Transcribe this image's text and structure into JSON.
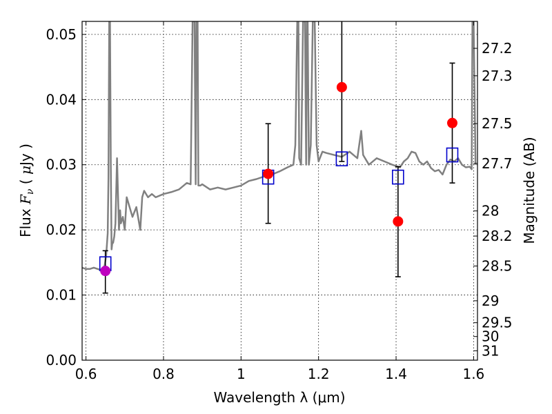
{
  "chart_data": {
    "type": "scatter",
    "title": "",
    "xlabel": "Wavelength  λ (μm)",
    "ylabel": "Flux  F_ν ( μJy )",
    "ylabel_right": "Magnitude (AB)",
    "xlim": [
      0.59,
      1.61
    ],
    "ylim": [
      0.0,
      0.052
    ],
    "grid": true,
    "x_ticks": [
      0.6,
      0.8,
      1.0,
      1.2,
      1.4,
      1.6
    ],
    "x_tick_labels": [
      "0.6",
      "0.8",
      "1",
      "1.2",
      "1.4",
      "1.6"
    ],
    "y_ticks": [
      0.0,
      0.01,
      0.02,
      0.03,
      0.04,
      0.05
    ],
    "y_tick_labels": [
      "0.00",
      "0.01",
      "0.02",
      "0.03",
      "0.04",
      "0.05"
    ],
    "mag_ticks": [
      27.2,
      27.3,
      27.5,
      27.7,
      28,
      28.2,
      28.5,
      29,
      29.5,
      30,
      31
    ],
    "mag_tick_labels": [
      "27.2",
      "27.3",
      "27.5",
      "27.7",
      "28",
      "28.2",
      "28.5",
      "29",
      "29.5",
      "30",
      "31"
    ],
    "colors": {
      "observed": "#ff0000",
      "observed_first": "#bf00bf",
      "model_box": "#0000cc",
      "errorbar": "#000000",
      "sed": "#808080"
    },
    "observed_points": [
      {
        "x": 0.65,
        "y": 0.0137,
        "err_low": 0.0103,
        "err_high": 0.0168
      },
      {
        "x": 1.07,
        "y": 0.0286,
        "err_low": 0.021,
        "err_high": 0.0363
      },
      {
        "x": 1.26,
        "y": 0.0419,
        "err_low": 0.0305,
        "err_high": 0.054
      },
      {
        "x": 1.405,
        "y": 0.0213,
        "err_low": 0.0128,
        "err_high": 0.0297
      },
      {
        "x": 1.545,
        "y": 0.0364,
        "err_low": 0.0272,
        "err_high": 0.0456
      }
    ],
    "model_points": [
      {
        "x": 0.65,
        "y": 0.0148
      },
      {
        "x": 1.07,
        "y": 0.0281
      },
      {
        "x": 1.26,
        "y": 0.0309
      },
      {
        "x": 1.405,
        "y": 0.0281
      },
      {
        "x": 1.545,
        "y": 0.0315
      }
    ],
    "sed_series": {
      "x": [
        0.59,
        0.6,
        0.61,
        0.62,
        0.63,
        0.64,
        0.648,
        0.652,
        0.656,
        0.658,
        0.66,
        0.662,
        0.664,
        0.666,
        0.668,
        0.67,
        0.673,
        0.676,
        0.68,
        0.685,
        0.688,
        0.69,
        0.695,
        0.7,
        0.705,
        0.71,
        0.72,
        0.73,
        0.74,
        0.745,
        0.75,
        0.76,
        0.77,
        0.78,
        0.8,
        0.82,
        0.84,
        0.86,
        0.87,
        0.875,
        0.88,
        0.883,
        0.885,
        0.888,
        0.89,
        0.895,
        0.9,
        0.92,
        0.94,
        0.96,
        0.98,
        1.0,
        1.02,
        1.04,
        1.06,
        1.08,
        1.1,
        1.12,
        1.135,
        1.14,
        1.142,
        1.145,
        1.148,
        1.15,
        1.155,
        1.16,
        1.165,
        1.168,
        1.17,
        1.172,
        1.175,
        1.18,
        1.185,
        1.19,
        1.195,
        1.2,
        1.21,
        1.22,
        1.24,
        1.26,
        1.28,
        1.3,
        1.31,
        1.315,
        1.32,
        1.33,
        1.35,
        1.37,
        1.39,
        1.41,
        1.42,
        1.43,
        1.44,
        1.45,
        1.46,
        1.47,
        1.48,
        1.49,
        1.5,
        1.51,
        1.52,
        1.53,
        1.54,
        1.55,
        1.56,
        1.57,
        1.58,
        1.59,
        1.595,
        1.597,
        1.6,
        1.605
      ],
      "y": [
        0.0142,
        0.014,
        0.014,
        0.0142,
        0.014,
        0.0138,
        0.0145,
        0.016,
        0.0195,
        0.028,
        0.052,
        0.052,
        0.03,
        0.017,
        0.018,
        0.018,
        0.019,
        0.021,
        0.031,
        0.02,
        0.023,
        0.021,
        0.022,
        0.02,
        0.025,
        0.024,
        0.022,
        0.0235,
        0.02,
        0.025,
        0.026,
        0.025,
        0.0255,
        0.025,
        0.0255,
        0.0258,
        0.0262,
        0.0272,
        0.027,
        0.052,
        0.052,
        0.027,
        0.052,
        0.052,
        0.0268,
        0.0268,
        0.027,
        0.0262,
        0.0265,
        0.0262,
        0.0265,
        0.0268,
        0.0275,
        0.0278,
        0.0282,
        0.0285,
        0.029,
        0.0296,
        0.03,
        0.033,
        0.04,
        0.052,
        0.052,
        0.031,
        0.03,
        0.052,
        0.052,
        0.03,
        0.052,
        0.052,
        0.03,
        0.033,
        0.052,
        0.052,
        0.033,
        0.0305,
        0.032,
        0.0318,
        0.0315,
        0.0312,
        0.032,
        0.031,
        0.0352,
        0.0315,
        0.031,
        0.03,
        0.031,
        0.0305,
        0.03,
        0.0296,
        0.0305,
        0.031,
        0.032,
        0.0318,
        0.0305,
        0.03,
        0.0305,
        0.0295,
        0.029,
        0.0292,
        0.0285,
        0.03,
        0.0308,
        0.0305,
        0.031,
        0.03,
        0.0296,
        0.0297,
        0.0293,
        0.052,
        0.052,
        0.03
      ]
    }
  }
}
